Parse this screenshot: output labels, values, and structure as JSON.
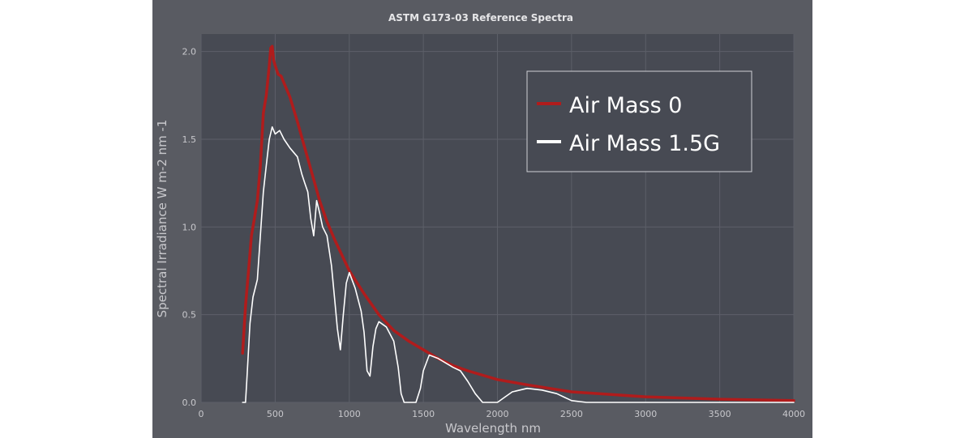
{
  "chart_data": {
    "type": "line",
    "title": "ASTM G173-03 Reference Spectra",
    "xlabel": "Wavelength nm",
    "ylabel": "Spectral Irradiance W m-2 nm -1",
    "xlim": [
      0,
      4000
    ],
    "ylim": [
      0,
      2.1
    ],
    "xticks": [
      0,
      500,
      1000,
      1500,
      2000,
      2500,
      3000,
      3500,
      4000
    ],
    "yticks": [
      0.0,
      0.5,
      1.0,
      1.5,
      2.0
    ],
    "xtick_labels": [
      "0",
      "500",
      "1000",
      "1500",
      "2000",
      "2500",
      "3000",
      "3500",
      "4000"
    ],
    "ytick_labels": [
      "0.0",
      "0.5",
      "1.0",
      "1.5",
      "2.0"
    ],
    "grid": true,
    "legend_position": "top-right",
    "series": [
      {
        "name": "Air Mass 0",
        "color": "#b01c1c",
        "x": [
          280,
          300,
          320,
          340,
          360,
          380,
          400,
          420,
          440,
          460,
          470,
          480,
          490,
          500,
          520,
          540,
          560,
          580,
          600,
          650,
          700,
          750,
          800,
          850,
          900,
          1000,
          1100,
          1200,
          1300,
          1400,
          1500,
          1600,
          1700,
          1800,
          2000,
          2200,
          2500,
          3000,
          3500,
          4000
        ],
        "y": [
          0.28,
          0.55,
          0.75,
          0.95,
          1.05,
          1.15,
          1.35,
          1.65,
          1.75,
          1.92,
          2.02,
          2.03,
          1.95,
          1.92,
          1.87,
          1.86,
          1.82,
          1.78,
          1.74,
          1.6,
          1.45,
          1.3,
          1.15,
          1.03,
          0.93,
          0.75,
          0.62,
          0.5,
          0.41,
          0.35,
          0.3,
          0.25,
          0.21,
          0.18,
          0.13,
          0.1,
          0.06,
          0.032,
          0.018,
          0.01
        ]
      },
      {
        "name": "Air Mass 1.5G",
        "color": "#ffffff",
        "x": [
          280,
          300,
          310,
          330,
          350,
          380,
          400,
          420,
          440,
          460,
          480,
          500,
          530,
          560,
          600,
          650,
          680,
          700,
          720,
          740,
          760,
          770,
          780,
          800,
          820,
          850,
          880,
          900,
          920,
          940,
          960,
          980,
          1000,
          1040,
          1080,
          1100,
          1120,
          1140,
          1160,
          1180,
          1200,
          1250,
          1300,
          1330,
          1350,
          1370,
          1400,
          1420,
          1450,
          1480,
          1500,
          1540,
          1600,
          1700,
          1750,
          1800,
          1850,
          1900,
          1950,
          2000,
          2050,
          2100,
          2200,
          2300,
          2400,
          2450,
          2500,
          2600,
          2800,
          3000,
          3200,
          3500,
          4000
        ],
        "y": [
          0.0,
          0.0,
          0.15,
          0.45,
          0.6,
          0.7,
          0.95,
          1.2,
          1.35,
          1.5,
          1.57,
          1.53,
          1.55,
          1.5,
          1.45,
          1.4,
          1.3,
          1.25,
          1.2,
          1.05,
          0.95,
          1.05,
          1.15,
          1.08,
          1.0,
          0.95,
          0.78,
          0.6,
          0.42,
          0.3,
          0.5,
          0.68,
          0.74,
          0.65,
          0.52,
          0.4,
          0.18,
          0.15,
          0.32,
          0.42,
          0.46,
          0.43,
          0.35,
          0.2,
          0.05,
          0.0,
          0.0,
          0.0,
          0.0,
          0.08,
          0.18,
          0.27,
          0.25,
          0.2,
          0.18,
          0.12,
          0.05,
          0.0,
          0.0,
          0.0,
          0.03,
          0.06,
          0.08,
          0.07,
          0.05,
          0.03,
          0.01,
          0.0,
          0.0,
          0.0,
          0.0,
          0.0,
          0.0
        ]
      }
    ]
  }
}
